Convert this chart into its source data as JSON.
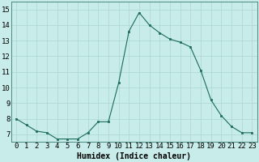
{
  "x": [
    0,
    1,
    2,
    3,
    4,
    5,
    6,
    7,
    8,
    9,
    10,
    11,
    12,
    13,
    14,
    15,
    16,
    17,
    18,
    19,
    20,
    21,
    22,
    23
  ],
  "y": [
    8.0,
    7.6,
    7.2,
    7.1,
    6.7,
    6.7,
    6.7,
    7.1,
    7.8,
    7.8,
    10.3,
    13.6,
    14.8,
    14.0,
    13.5,
    13.1,
    12.9,
    12.6,
    11.1,
    9.2,
    8.2,
    7.5,
    7.1,
    7.1
  ],
  "line_color": "#1a6b5e",
  "marker_color": "#1a6b5e",
  "bg_color": "#c8ece9",
  "grid_color": "#aad6d2",
  "xlabel": "Humidex (Indice chaleur)",
  "xlabel_fontsize": 7,
  "xtick_labels": [
    "0",
    "1",
    "2",
    "3",
    "4",
    "5",
    "6",
    "7",
    "8",
    "9",
    "10",
    "11",
    "12",
    "13",
    "14",
    "15",
    "16",
    "17",
    "18",
    "19",
    "20",
    "21",
    "22",
    "23"
  ],
  "ytick_labels": [
    "7",
    "8",
    "9",
    "10",
    "11",
    "12",
    "13",
    "14",
    "15"
  ],
  "ylim": [
    6.5,
    15.5
  ],
  "xlim": [
    -0.5,
    23.5
  ],
  "tick_fontsize": 6.5,
  "figsize": [
    3.2,
    2.0
  ],
  "dpi": 100
}
